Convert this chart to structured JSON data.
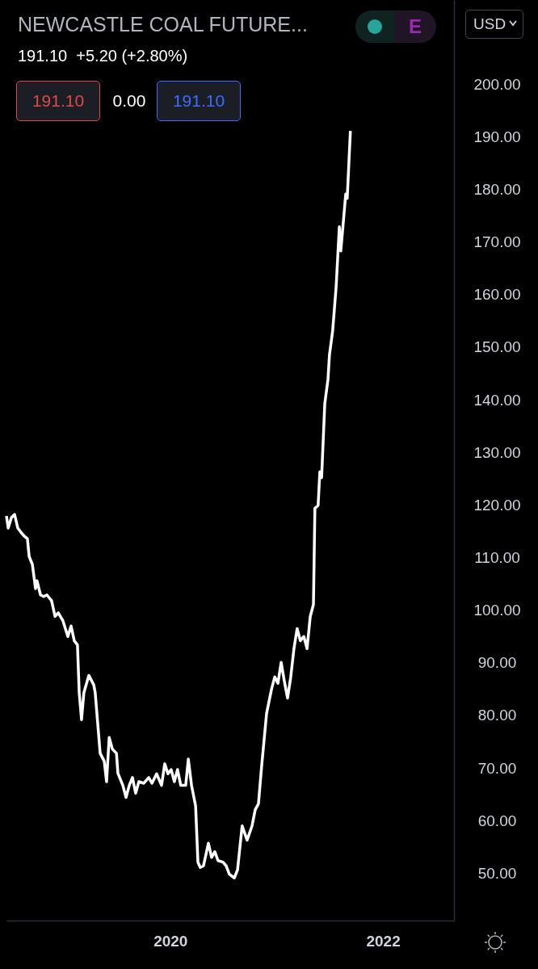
{
  "chart_data": {
    "type": "line",
    "title": "NEWCASTLE COAL FUTURE...",
    "subtitle": "191.10  +5.20 (+2.80%)",
    "annotations": [
      "191.10",
      "0.00",
      "191.10",
      "USD",
      "E"
    ],
    "color": "#ffffff",
    "x": [
      "2018-06-17",
      "2018-06-23",
      "2018-07-04",
      "2018-07-15",
      "2018-07-26",
      "2018-08-06",
      "2018-08-17",
      "2018-08-28",
      "2018-09-03",
      "2018-09-14",
      "2018-09-25",
      "2018-09-30",
      "2018-10-12",
      "2018-10-23",
      "2018-11-03",
      "2018-11-19",
      "2018-12-01",
      "2018-12-12",
      "2018-12-28",
      "2019-01-14",
      "2019-01-25",
      "2019-02-05",
      "2019-02-16",
      "2019-02-22",
      "2019-03-02",
      "2019-03-10",
      "2019-03-27",
      "2019-04-13",
      "2019-04-18",
      "2019-05-05",
      "2019-05-19",
      "2019-05-27",
      "2019-06-05",
      "2019-06-16",
      "2019-06-30",
      "2019-07-05",
      "2019-07-22",
      "2019-08-02",
      "2019-08-13",
      "2019-08-24",
      "2019-09-04",
      "2019-09-15",
      "2019-10-02",
      "2019-10-19",
      "2019-10-30",
      "2019-11-15",
      "2019-12-02",
      "2019-12-13",
      "2019-12-24",
      "2020-01-04",
      "2020-01-15",
      "2020-01-26",
      "2020-02-06",
      "2020-02-23",
      "2020-03-03",
      "2020-03-14",
      "2020-03-28",
      "2020-04-05",
      "2020-04-13",
      "2020-04-24",
      "2020-05-11",
      "2020-05-22",
      "2020-06-02",
      "2020-06-13",
      "2020-06-30",
      "2020-07-11",
      "2020-07-22",
      "2020-08-08",
      "2020-08-19",
      "2020-09-04",
      "2020-09-21",
      "2020-10-08",
      "2020-10-19",
      "2020-10-30",
      "2020-11-10",
      "2020-11-27",
      "2020-12-14",
      "2020-12-25",
      "2021-01-05",
      "2021-01-16",
      "2021-01-27",
      "2021-02-07",
      "2021-02-18",
      "2021-03-01",
      "2021-03-12",
      "2021-03-23",
      "2021-04-04",
      "2021-04-15",
      "2021-04-26",
      "2021-05-07",
      "2021-05-12",
      "2021-05-23",
      "2021-05-29",
      "2021-06-04",
      "2021-06-15",
      "2021-06-26",
      "2021-07-01",
      "2021-07-12",
      "2021-07-24",
      "2021-08-04",
      "2021-08-09",
      "2021-08-15",
      "2021-08-26",
      "2021-08-31",
      "2021-09-11"
    ],
    "values": [
      117.9,
      115.6,
      117.6,
      118.2,
      115.6,
      114.8,
      114.1,
      113.6,
      110.2,
      108.7,
      104.1,
      105.6,
      102.9,
      102.6,
      102.9,
      101.8,
      98.8,
      99.5,
      98.0,
      95.0,
      97.0,
      94.2,
      93.4,
      84.3,
      79.2,
      84.3,
      87.6,
      85.8,
      84.3,
      72.8,
      71.3,
      67.4,
      75.8,
      73.6,
      72.8,
      69.0,
      66.7,
      64.4,
      66.7,
      68.2,
      65.2,
      67.4,
      67.1,
      68.2,
      67.1,
      68.9,
      66.7,
      70.8,
      68.9,
      69.7,
      67.4,
      69.7,
      66.7,
      66.7,
      71.7,
      66.7,
      62.8,
      52.1,
      51.1,
      51.4,
      55.7,
      53.0,
      54.1,
      52.4,
      52.1,
      51.4,
      49.8,
      49.1,
      50.6,
      59.0,
      56.3,
      59.0,
      62.1,
      63.2,
      70.4,
      80.4,
      85.0,
      87.3,
      86.1,
      90.1,
      86.5,
      83.3,
      87.3,
      92.7,
      96.5,
      94.2,
      95.0,
      92.7,
      98.8,
      101.1,
      119.4,
      119.9,
      126.3,
      125.2,
      139.3,
      143.9,
      148.5,
      153.1,
      161.5,
      172.9,
      168.3,
      172.1,
      179.1,
      178.3,
      191.1
    ],
    "xlim": [
      "2018-06-17",
      "2022-09-02"
    ],
    "xticks": [
      "2020",
      "2022"
    ],
    "ylim": [
      41,
      216
    ],
    "yticks": [
      {
        "value": 50,
        "label": "50.00"
      },
      {
        "value": 60,
        "label": "60.00"
      },
      {
        "value": 70,
        "label": "70.00"
      },
      {
        "value": 80,
        "label": "80.00"
      },
      {
        "value": 90,
        "label": "90.00"
      },
      {
        "value": 100,
        "label": "100.00"
      },
      {
        "value": 110,
        "label": "110.00"
      },
      {
        "value": 120,
        "label": "120.00"
      },
      {
        "value": 130,
        "label": "130.00"
      },
      {
        "value": 140,
        "label": "140.00"
      },
      {
        "value": 150,
        "label": "150.00"
      },
      {
        "value": 160,
        "label": "160.00"
      },
      {
        "value": 170,
        "label": "170.00"
      },
      {
        "value": 180,
        "label": "180.00"
      },
      {
        "value": 190,
        "label": "190.00"
      },
      {
        "value": 200,
        "label": "200.00"
      }
    ]
  }
}
